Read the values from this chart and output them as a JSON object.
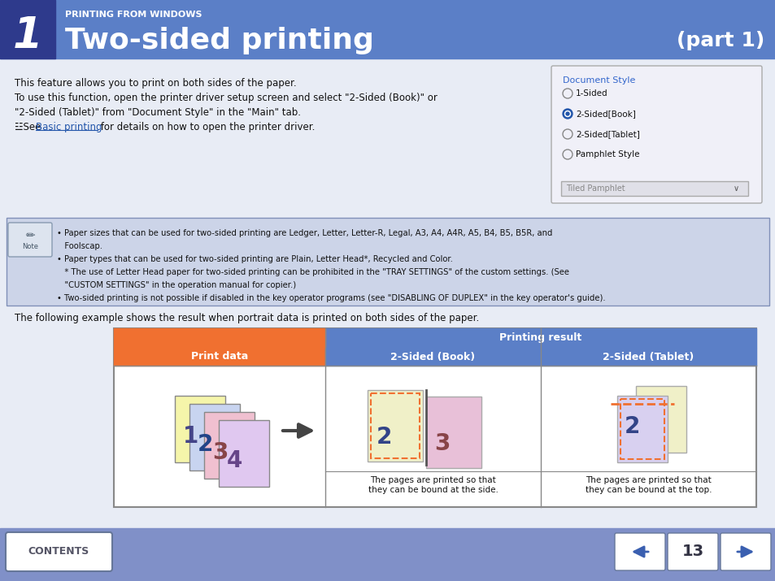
{
  "header_bg_color": "#5b7fc7",
  "header_dark_bg": "#2e3a8c",
  "header_title": "Two-sided printing",
  "header_subtitle": "PRINTING FROM WINDOWS",
  "header_part": "(part 1)",
  "header_number": "1",
  "body_bg": "#e8ecf5",
  "note_bg": "#ccd4e8",
  "note_border": "#8090b8",
  "table_header_orange": "#f07030",
  "table_header_blue": "#5b7fc7",
  "footer_bg": "#8090c8",
  "footer_btn_color": "#3a5fb0",
  "main_text_line1": "This feature allows you to print on both sides of the paper.",
  "main_text_line2": "To use this function, open the printer driver setup screen and select \"2-Sided (Book)\" or",
  "main_text_line3": "\"2-Sided (Tablet)\" from \"Document Style\" in the \"Main\" tab.",
  "main_text_line4a": "☳See ",
  "main_text_line4b": "Basic printing",
  "main_text_line4c": " for details on how to open the printer driver.",
  "note_lines": [
    "• Paper sizes that can be used for two-sided printing are Ledger, Letter, Letter-R, Legal, A3, A4, A4R, A5, B4, B5, B5R, and",
    "   Foolscap.",
    "• Paper types that can be used for two-sided printing are Plain, Letter Head*, Recycled and Color.",
    "   * The use of Letter Head paper for two-sided printing can be prohibited in the \"TRAY SETTINGS\" of the custom settings. (See",
    "   \"CUSTOM SETTINGS\" in the operation manual for copier.)",
    "• Two-sided printing is not possible if disabled in the key operator programs (see \"DISABLING OF DUPLEX\" in the key operator's guide)."
  ],
  "below_note_text": "The following example shows the result when portrait data is printed on both sides of the paper.",
  "col1_header": "Print data",
  "col2_header": "2-Sided (Book)",
  "col3_header": "2-Sided (Tablet)",
  "col2_caption": "The pages are printed so that\nthey can be bound at the side.",
  "col3_caption": "The pages are printed so that\nthey can be bound at the top.",
  "printing_result": "Printing result",
  "page_number": "13",
  "doc_style_title": "Document Style",
  "radio_items": [
    "1-Sided",
    "2-Sided[Book]",
    "2-Sided[Tablet]",
    "Pamphlet Style"
  ],
  "radio_selected": 1,
  "dropdown_label": "Tiled Pamphlet"
}
